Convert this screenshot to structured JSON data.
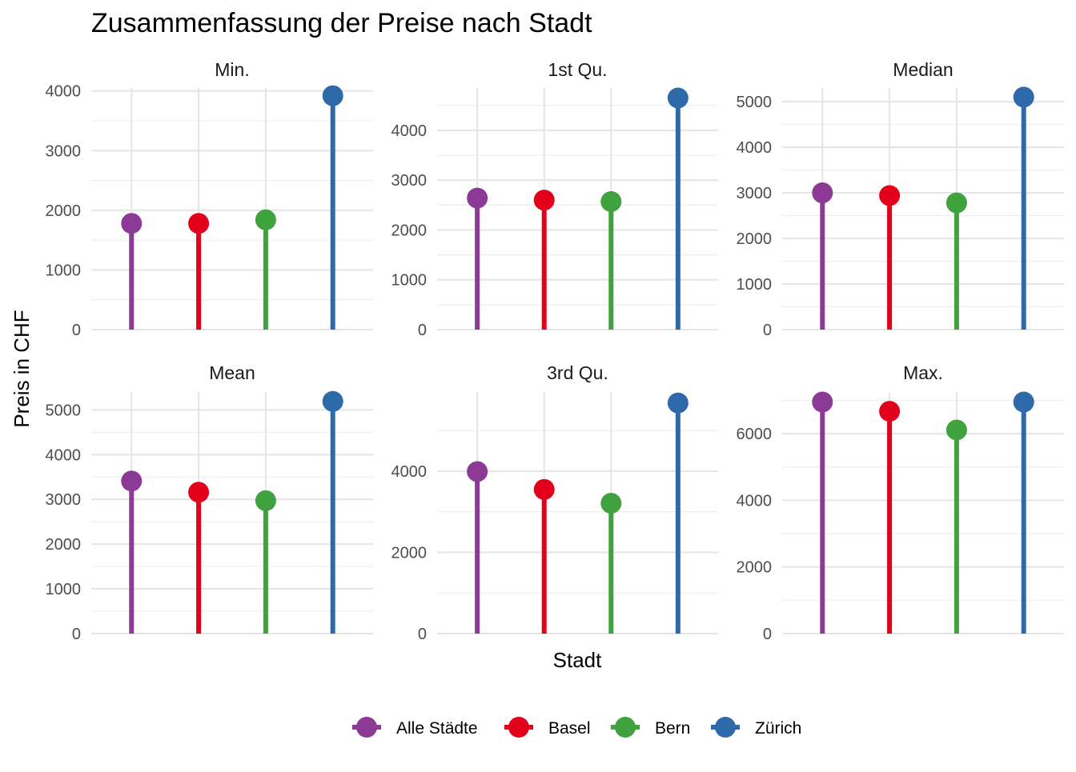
{
  "chart_data": {
    "type": "lollipop",
    "title": "Zusammenfassung der Preise nach Stadt",
    "xlabel": "Stadt",
    "ylabel": "Preis in CHF",
    "x_tick_labels_shown": false,
    "grid": true,
    "legend_position": "bottom",
    "categories": [
      "Alle Städte",
      "Basel",
      "Bern",
      "Zürich"
    ],
    "series_colors": [
      "#8B3A96",
      "#E3001B",
      "#3FA23F",
      "#2E6AAA"
    ],
    "panels": [
      {
        "name": "Min.",
        "values": [
          1780,
          1780,
          1840,
          3920
        ],
        "ylim": [
          0,
          4050
        ],
        "yticks": [
          0,
          1000,
          2000,
          3000,
          4000
        ]
      },
      {
        "name": "1st Qu.",
        "values": [
          2640,
          2600,
          2570,
          4650
        ],
        "ylim": [
          0,
          4850
        ],
        "yticks": [
          0,
          1000,
          2000,
          3000,
          4000
        ]
      },
      {
        "name": "Median",
        "values": [
          3000,
          2940,
          2780,
          5100
        ],
        "ylim": [
          0,
          5300
        ],
        "yticks": [
          0,
          1000,
          2000,
          3000,
          4000,
          5000
        ]
      },
      {
        "name": "Mean",
        "values": [
          3410,
          3160,
          2970,
          5190
        ],
        "ylim": [
          0,
          5400
        ],
        "yticks": [
          0,
          1000,
          2000,
          3000,
          4000,
          5000
        ]
      },
      {
        "name": "3rd Qu.",
        "values": [
          3990,
          3550,
          3210,
          5680
        ],
        "ylim": [
          0,
          5950
        ],
        "yticks": [
          0,
          2000,
          4000
        ]
      },
      {
        "name": "Max.",
        "values": [
          6950,
          6670,
          6110,
          6950
        ],
        "ylim": [
          0,
          7250
        ],
        "yticks": [
          0,
          2000,
          4000,
          6000
        ]
      }
    ]
  }
}
